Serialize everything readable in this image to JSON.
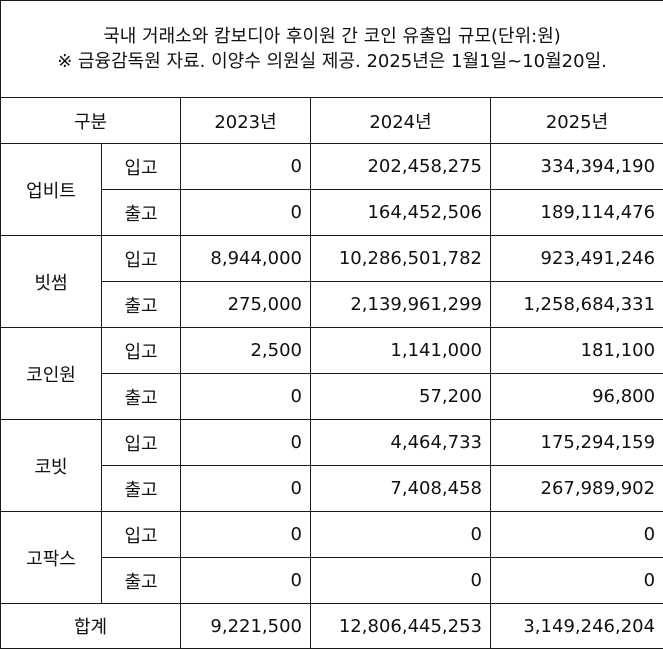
{
  "title": "국내 거래소와 캄보디아 후이원 간 코인 유출입 규모(단위:원)",
  "note": "※ 금융감독원 자료. 이양수 의원실 제공. 2025년은 1월1일~10월20일.",
  "header": {
    "category": "구분",
    "years": [
      "2023년",
      "2024년",
      "2025년"
    ]
  },
  "exchanges": [
    {
      "name": "업비트",
      "rows": [
        {
          "type": "입고",
          "values": [
            "0",
            "202,458,275",
            "334,394,190"
          ]
        },
        {
          "type": "출고",
          "values": [
            "0",
            "164,452,506",
            "189,114,476"
          ]
        }
      ]
    },
    {
      "name": "빗썸",
      "rows": [
        {
          "type": "입고",
          "values": [
            "8,944,000",
            "10,286,501,782",
            "923,491,246"
          ]
        },
        {
          "type": "출고",
          "values": [
            "275,000",
            "2,139,961,299",
            "1,258,684,331"
          ]
        }
      ]
    },
    {
      "name": "코인원",
      "rows": [
        {
          "type": "입고",
          "values": [
            "2,500",
            "1,141,000",
            "181,100"
          ]
        },
        {
          "type": "출고",
          "values": [
            "0",
            "57,200",
            "96,800"
          ]
        }
      ]
    },
    {
      "name": "코빗",
      "rows": [
        {
          "type": "입고",
          "values": [
            "0",
            "4,464,733",
            "175,294,159"
          ]
        },
        {
          "type": "출고",
          "values": [
            "0",
            "7,408,458",
            "267,989,902"
          ]
        }
      ]
    },
    {
      "name": "고팍스",
      "rows": [
        {
          "type": "입고",
          "values": [
            "0",
            "0",
            "0"
          ]
        },
        {
          "type": "출고",
          "values": [
            "0",
            "0",
            "0"
          ]
        }
      ]
    }
  ],
  "total": {
    "label": "합계",
    "values": [
      "9,221,500",
      "12,806,445,253",
      "3,149,246,204"
    ]
  }
}
